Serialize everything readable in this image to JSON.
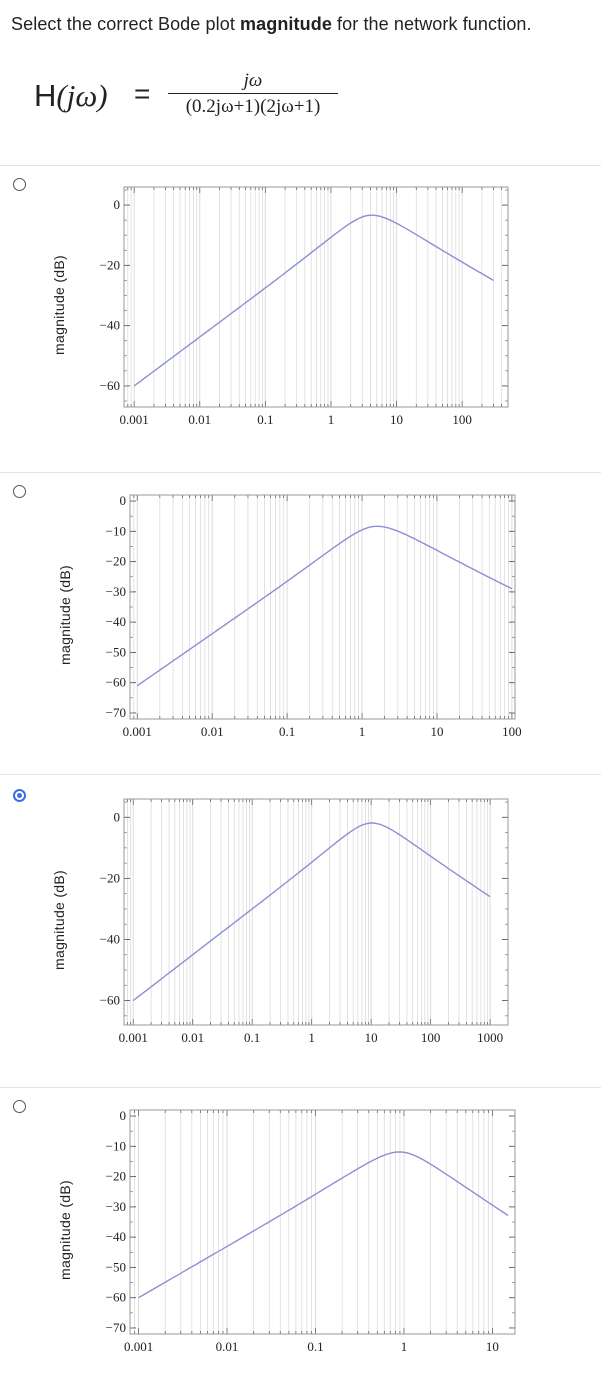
{
  "question": {
    "prefix": "Select the correct Bode plot ",
    "bold": "magnitude",
    "suffix": " for the network function."
  },
  "formula": {
    "lhs_H": "H",
    "lhs_arg": "(jω)",
    "equals": "=",
    "numerator": "jω",
    "denominator": "(0.2jω+1)(2jω+1)"
  },
  "options": [
    {
      "selected": false,
      "chart_data": {
        "type": "line",
        "ylabel": "magnitude  (dB)",
        "xscale": "log",
        "xlim": [
          0.0007,
          500
        ],
        "ylim": [
          -67,
          6
        ],
        "xticks": [
          "0.001",
          "0.01",
          "0.1",
          "1",
          "10",
          "100"
        ],
        "yticks": [
          "0",
          "-20",
          "-40",
          "-60"
        ],
        "series": [
          {
            "zeros_at": [],
            "poles_at": [
              2,
              20
            ],
            "gain_db": 0,
            "slope": "20 dB/dec rising, 20 dB/dec falling"
          }
        ],
        "grid": true,
        "x_range": [
          0.001,
          300
        ],
        "curve": {
          "peak_db": -1.5,
          "peak_at": 4,
          "start_db": -60,
          "end_db": -25
        }
      }
    },
    {
      "selected": false,
      "chart_data": {
        "type": "line",
        "ylabel": "magnitude  (dB)",
        "xscale": "log",
        "xlim": [
          0.0008,
          110
        ],
        "ylim": [
          -72,
          2
        ],
        "xticks": [
          "0.001",
          "0.01",
          "0.1",
          "1",
          "10",
          "100"
        ],
        "yticks": [
          "0",
          "-10",
          "-20",
          "-30",
          "-40",
          "-50",
          "-60",
          "-70"
        ],
        "grid": true,
        "x_range": [
          0.001,
          100
        ],
        "curve": {
          "peak_db": -6.5,
          "peak_at": 1.5,
          "start_db": -61,
          "end_db": -29
        }
      }
    },
    {
      "selected": true,
      "chart_data": {
        "type": "line",
        "ylabel": "magnitude  (dB)",
        "xscale": "log",
        "xlim": [
          0.0007,
          2000
        ],
        "ylim": [
          -68,
          6
        ],
        "xticks": [
          "0.001",
          "0.01",
          "0.1",
          "1",
          "10",
          "100",
          "1000"
        ],
        "yticks": [
          "0",
          "-20",
          "-40",
          "-60"
        ],
        "grid": true,
        "x_range": [
          0.001,
          1000
        ],
        "curve": {
          "peak_db": 0,
          "peak_at": 10,
          "start_db": -60,
          "end_db": -26
        }
      }
    },
    {
      "selected": false,
      "chart_data": {
        "type": "line",
        "ylabel": "magnitude  (dB)",
        "xscale": "log",
        "xlim": [
          0.0008,
          18
        ],
        "ylim": [
          -72,
          2
        ],
        "xticks": [
          "0.001",
          "0.01",
          "0.1",
          "1",
          "10"
        ],
        "yticks": [
          "0",
          "-10",
          "-20",
          "-30",
          "-40",
          "-50",
          "-60",
          "-70"
        ],
        "grid": true,
        "x_range": [
          0.001,
          15
        ],
        "curve": {
          "peak_db": -10,
          "peak_at": 0.9,
          "start_db": -60,
          "end_db": -33
        }
      }
    }
  ],
  "colors": {
    "curve": "#8b8fd6",
    "grid": "#dcdcdc",
    "frame": "#9a9a9a",
    "radio_selected": "#3a6ee8"
  }
}
